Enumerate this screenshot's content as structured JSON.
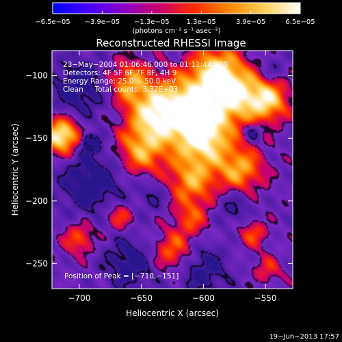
{
  "chart_data": {
    "type": "heatmap",
    "title": "Reconstructed RHESSI Image",
    "xlabel": "Heliocentric X (arcsec)",
    "ylabel": "Heliocentric Y (arcsec)",
    "xlim": [
      -722,
      -528
    ],
    "ylim": [
      -270,
      -80
    ],
    "x_ticks": [
      {
        "value": -700,
        "label": "−700"
      },
      {
        "value": -650,
        "label": "−650"
      },
      {
        "value": -600,
        "label": "−600"
      },
      {
        "value": -550,
        "label": "−550"
      }
    ],
    "y_ticks": [
      {
        "value": -100,
        "label": "−100"
      },
      {
        "value": -150,
        "label": "−150"
      },
      {
        "value": -200,
        "label": "−200"
      },
      {
        "value": -250,
        "label": "−250"
      }
    ],
    "colorbar": {
      "min": -6.5e-05,
      "max": 6.5e-05,
      "ticks": [
        {
          "value": -6.5e-05,
          "label": "−6.5e−05"
        },
        {
          "value": -3.9e-05,
          "label": "−3.9e−05"
        },
        {
          "value": -1.3e-05,
          "label": "−1.3e−05"
        },
        {
          "value": 1.3e-05,
          "label": "1.3e−05"
        },
        {
          "value": 3.9e-05,
          "label": "3.9e−05"
        },
        {
          "value": 6.5e-05,
          "label": "6.5e−05"
        }
      ],
      "unit_label": "(photons cm⁻² s⁻¹ asec⁻²)",
      "colors": [
        "#0000ff",
        "#4400ff",
        "#8a00c8",
        "#c8006e",
        "#ff2a00",
        "#ff8a00",
        "#ffd25a",
        "#ffffff"
      ]
    },
    "info_lines": [
      "23−May−2004 01:06:46.000 to 01:11:44.000",
      "Detectors: 4F 5F 6F 7F 8F, 4H 9",
      "Energy Range: 25.0 − 50.0 keV",
      "Clean     Total counts: 3.32E+03"
    ],
    "peak_label": "Position of Peak = [−710,−151]",
    "footer_date": "19−Jun−2013 17:57",
    "min_marker": {
      "x": -691,
      "y": -154
    }
  }
}
